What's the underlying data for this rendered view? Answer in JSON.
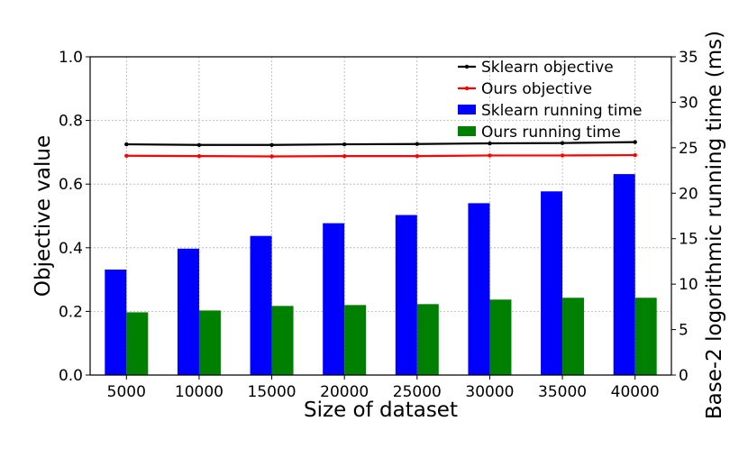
{
  "chart_data": {
    "type": "bar",
    "categories": [
      "5000",
      "10000",
      "15000",
      "20000",
      "25000",
      "30000",
      "35000",
      "40000"
    ],
    "xlabel": "Size of dataset",
    "ylabel": "Objective value",
    "y2label": "Base-2 logorithmic running time (ms)",
    "ylim": [
      0.0,
      1.0
    ],
    "y2lim": [
      0,
      35
    ],
    "yticks": [
      "0.0",
      "0.2",
      "0.4",
      "0.6",
      "0.8",
      "1.0"
    ],
    "y2ticks": [
      "0",
      "5",
      "10",
      "15",
      "20",
      "25",
      "30",
      "35"
    ],
    "grid": true,
    "legend_position": "top-right",
    "series": [
      {
        "name": "Sklearn objective",
        "kind": "line",
        "axis": "left",
        "color": "#000000",
        "values": [
          0.725,
          0.723,
          0.723,
          0.725,
          0.726,
          0.728,
          0.729,
          0.732
        ]
      },
      {
        "name": "Ours objective",
        "kind": "line",
        "axis": "left",
        "color": "#ff0000",
        "values": [
          0.689,
          0.688,
          0.687,
          0.688,
          0.688,
          0.69,
          0.69,
          0.691
        ]
      },
      {
        "name": "Sklearn running time",
        "kind": "bar",
        "axis": "right",
        "color": "#0000ff",
        "values": [
          11.6,
          13.9,
          15.3,
          16.7,
          17.6,
          18.9,
          20.2,
          22.1
        ]
      },
      {
        "name": "Ours running time",
        "kind": "bar",
        "axis": "right",
        "color": "#008000",
        "values": [
          6.9,
          7.1,
          7.6,
          7.7,
          7.8,
          8.3,
          8.5,
          8.5
        ]
      }
    ]
  }
}
